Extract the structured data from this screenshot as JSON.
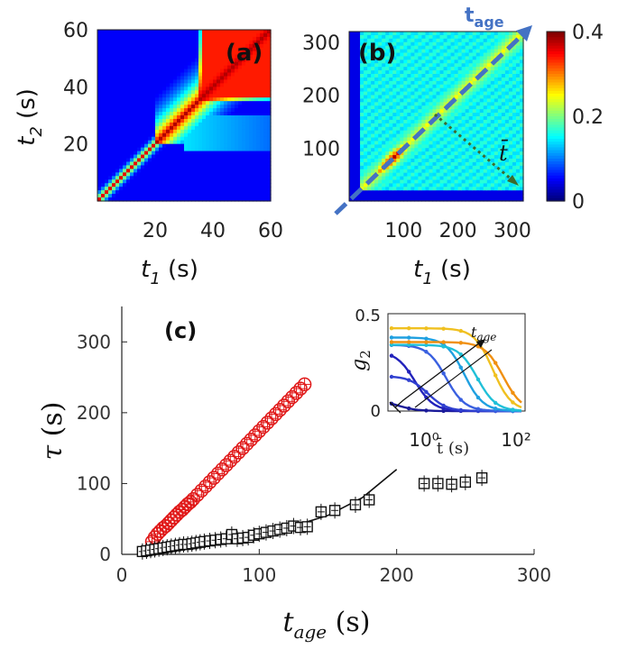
{
  "chart_data": [
    {
      "id": "a",
      "type": "heatmap",
      "panel_label": "(a)",
      "xlabel": "t1 (s)",
      "ylabel": "t2 (s)",
      "xlim": [
        0,
        60
      ],
      "ylim": [
        0,
        60
      ],
      "xticks": [
        "20",
        "40",
        "60"
      ],
      "yticks": [
        "20",
        "40",
        "60"
      ]
    },
    {
      "id": "b",
      "type": "heatmap",
      "panel_label": "(b)",
      "xlabel": "t1 (s)",
      "ylabel": "",
      "xlim": [
        0,
        320
      ],
      "ylim": [
        0,
        320
      ],
      "xticks": [
        "100",
        "200",
        "300"
      ],
      "yticks": [
        "100",
        "200",
        "300"
      ],
      "annotations": {
        "diagonal_arrow": "tage",
        "dotted_arrow": "t̄"
      },
      "colorbar": {
        "ticks": [
          "0",
          "0.2",
          "0.4"
        ],
        "range": [
          0,
          0.4
        ]
      }
    },
    {
      "id": "c",
      "type": "scatter",
      "panel_label": "(c)",
      "xlabel": "t_age (s)",
      "ylabel": "τ (s)",
      "xlim": [
        0,
        300
      ],
      "ylim": [
        0,
        350
      ],
      "xticks": [
        "0",
        "100",
        "200",
        "300"
      ],
      "yticks": [
        "0",
        "100",
        "200",
        "300"
      ],
      "series": [
        {
          "name": "red circles",
          "marker": "circle-plus",
          "color": "#e01818",
          "x": [
            22,
            24,
            26,
            28,
            30,
            32,
            34,
            36,
            38,
            40,
            42,
            44,
            46,
            48,
            50,
            52,
            55,
            58,
            61,
            64,
            67,
            70,
            73,
            76,
            79,
            82,
            85,
            88,
            91,
            94,
            97,
            100,
            103,
            106,
            109,
            112,
            115,
            118,
            121,
            124,
            127,
            130,
            133
          ],
          "y": [
            18,
            24,
            29,
            33,
            37,
            40,
            44,
            48,
            52,
            56,
            60,
            63,
            67,
            71,
            74,
            78,
            84,
            90,
            96,
            102,
            108,
            114,
            120,
            126,
            132,
            138,
            144,
            150,
            156,
            162,
            168,
            174,
            180,
            186,
            192,
            198,
            204,
            210,
            216,
            222,
            228,
            234,
            240
          ]
        },
        {
          "name": "black squares",
          "marker": "square-plus",
          "color": "#111111",
          "x": [
            15,
            18,
            21,
            24,
            27,
            30,
            33,
            36,
            39,
            42,
            45,
            48,
            51,
            54,
            57,
            60,
            64,
            68,
            72,
            76,
            80,
            84,
            88,
            92,
            96,
            100,
            105,
            110,
            115,
            120,
            125,
            130,
            135,
            145,
            155,
            170,
            180,
            220,
            230,
            240,
            250,
            262
          ],
          "y": [
            4,
            5,
            6,
            7,
            8,
            9,
            10,
            11,
            12,
            13,
            14,
            14,
            15,
            16,
            17,
            18,
            19,
            20,
            21,
            22,
            28,
            22,
            23,
            24,
            27,
            29,
            31,
            33,
            35,
            37,
            40,
            38,
            39,
            60,
            62,
            70,
            77,
            100,
            100,
            99,
            102,
            108
          ]
        },
        {
          "name": "fit",
          "marker": "line",
          "color": "#111111",
          "x": [
            15,
            30,
            50,
            75,
            100,
            125,
            150,
            175,
            200
          ],
          "y": [
            6,
            10,
            15,
            22,
            30,
            40,
            55,
            80,
            120
          ]
        }
      ],
      "inset": {
        "xlabel": "t̄ (s)",
        "ylabel": "g2",
        "yticks": [
          "0",
          "0.5"
        ],
        "xticks": [
          "10⁰",
          "10²"
        ],
        "arrow_label": "tage"
      }
    }
  ]
}
